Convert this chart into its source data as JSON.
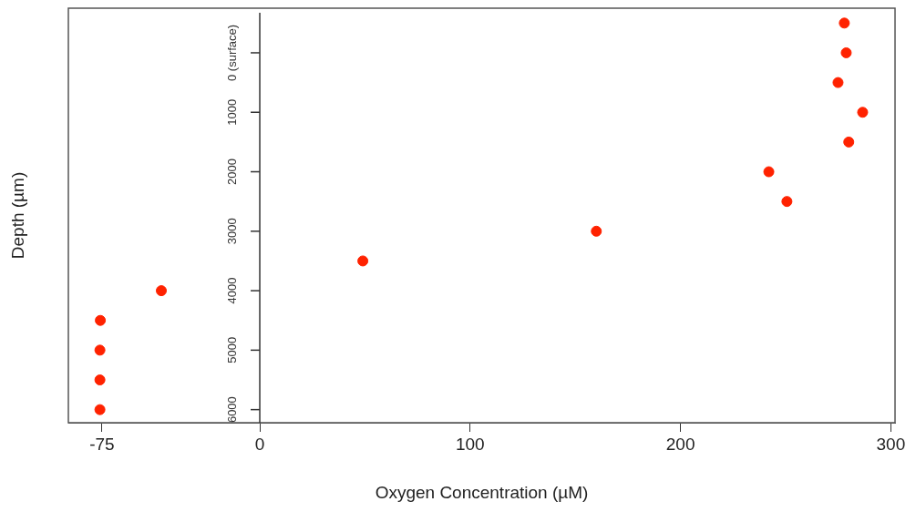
{
  "chart_data": {
    "type": "scatter",
    "xlabel": "Oxygen Concentration (µM)",
    "ylabel": "Depth (µm)",
    "x": [
      277.9,
      278.8,
      274.9,
      286.6,
      280,
      242,
      250.6,
      160,
      49,
      -46.8,
      -75.8,
      -76,
      -76,
      -76
    ],
    "series": [
      {
        "color": "#ff2200",
        "values": [
          -500,
          0,
          500,
          1000,
          1500,
          2000,
          2500,
          3000,
          3500,
          4000,
          4500,
          5000,
          5500,
          6000
        ]
      }
    ],
    "xlim": [
      -91,
      302
    ],
    "xticks": [
      -75,
      0,
      100,
      200,
      300
    ],
    "ylim": [
      6220,
      -750
    ],
    "yticks": [
      {
        "value": 0,
        "label": "0 (surface)"
      },
      1000,
      2000,
      3000,
      4000,
      5000,
      6000
    ],
    "marker": "circle",
    "grid": false,
    "legend": false
  }
}
